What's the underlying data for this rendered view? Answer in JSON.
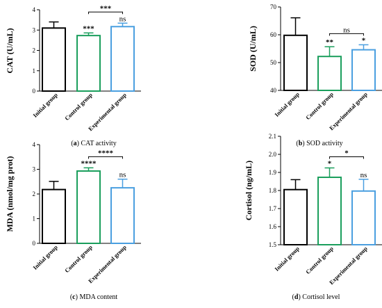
{
  "chart_data": [
    {
      "type": "bar",
      "panel_letter": "(a)",
      "caption": "CAT activity",
      "ylabel": "CAT (U/mL)",
      "ylim": [
        0,
        4
      ],
      "yticks": [
        0,
        1,
        2,
        3,
        4
      ],
      "categories": [
        "Initial group",
        "Control group",
        "Experimental group"
      ],
      "values": [
        3.1,
        2.73,
        3.17
      ],
      "errors": [
        0.3,
        0.13,
        0.17
      ],
      "bar_colors": [
        "#000000",
        "#1a9e5c",
        "#4a9fe0"
      ],
      "annotations": [
        "",
        "***",
        "ns"
      ],
      "bracket": {
        "from": 1,
        "to": 2,
        "label": "***"
      }
    },
    {
      "type": "bar",
      "panel_letter": "(b)",
      "caption": "SOD activity",
      "ylabel": "SOD (U/mL)",
      "ylim": [
        40,
        70
      ],
      "yticks": [
        40,
        50,
        60,
        70
      ],
      "categories": [
        "Initial group",
        "Control group",
        "Experimental group"
      ],
      "values": [
        59.8,
        52.2,
        54.6
      ],
      "errors": [
        6.3,
        3.5,
        1.8
      ],
      "bar_colors": [
        "#000000",
        "#1a9e5c",
        "#4a9fe0"
      ],
      "annotations": [
        "",
        "**",
        "*"
      ],
      "bracket": {
        "from": 1,
        "to": 2,
        "label": "ns"
      }
    },
    {
      "type": "bar",
      "panel_letter": "(c)",
      "caption": "MDA content",
      "ylabel": "MDA (nmol/mg prot)",
      "ylim": [
        0,
        4
      ],
      "yticks": [
        0,
        1,
        2,
        3,
        4
      ],
      "categories": [
        "Initial group",
        "Control group",
        "Experimental group"
      ],
      "values": [
        2.18,
        2.93,
        2.25
      ],
      "errors": [
        0.33,
        0.13,
        0.35
      ],
      "bar_colors": [
        "#000000",
        "#1a9e5c",
        "#4a9fe0"
      ],
      "annotations": [
        "",
        "****",
        "ns"
      ],
      "bracket": {
        "from": 1,
        "to": 2,
        "label": "****"
      }
    },
    {
      "type": "bar",
      "panel_letter": "(d)",
      "caption": "Cortisol level",
      "ylabel": "Cortisol (ng/mL)",
      "ylim": [
        1.5,
        2.1
      ],
      "yticks": [
        1.5,
        1.6,
        1.7,
        1.8,
        1.9,
        2.0,
        2.1
      ],
      "ytick_labels": [
        "1.5",
        "1.6",
        "1.7",
        "1.8",
        "1.9",
        "2.0",
        "2.1"
      ],
      "categories": [
        "Initial group",
        "Control group",
        "Experimental group"
      ],
      "values": [
        1.805,
        1.873,
        1.797
      ],
      "errors": [
        0.055,
        0.052,
        0.065
      ],
      "bar_colors": [
        "#000000",
        "#1a9e5c",
        "#4a9fe0"
      ],
      "annotations": [
        "",
        "*",
        "ns"
      ],
      "bracket": {
        "from": 1,
        "to": 2,
        "label": "*"
      }
    }
  ]
}
